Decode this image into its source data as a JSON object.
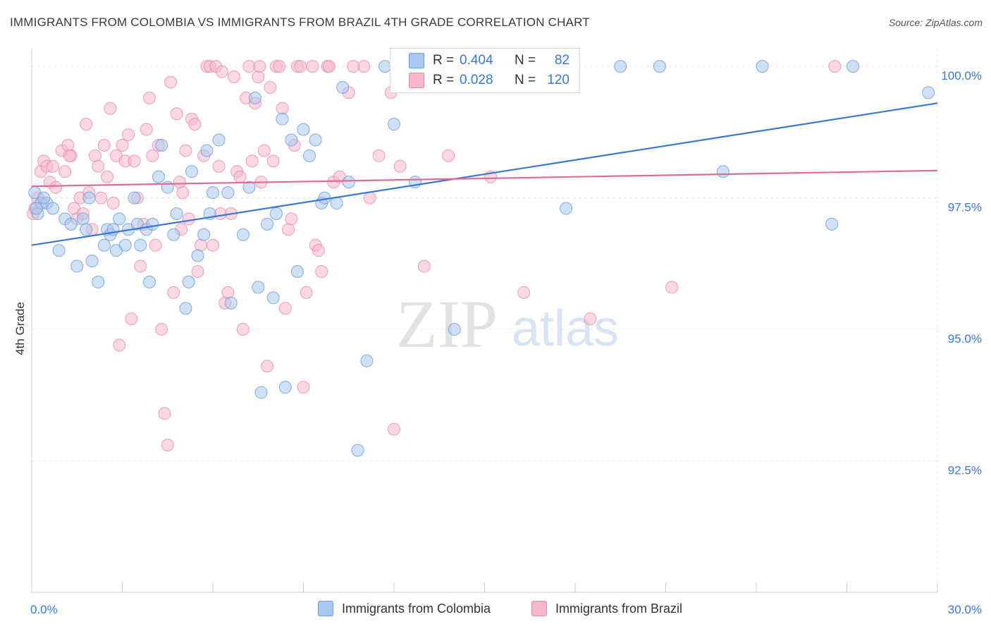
{
  "title": "IMMIGRANTS FROM COLOMBIA VS IMMIGRANTS FROM BRAZIL 4TH GRADE CORRELATION CHART",
  "source": "Source: ZipAtlas.com",
  "watermark": {
    "zip": "ZIP",
    "atlas": "atlas"
  },
  "legend": {
    "colombia": {
      "r_label": "R =",
      "r_value": "0.404",
      "n_label": "N =",
      "n_value": "82"
    },
    "brazil": {
      "r_label": "R =",
      "r_value": "0.028",
      "n_label": "N =",
      "n_value": "120"
    }
  },
  "colors": {
    "colombia_fill": "#a9c8ef",
    "colombia_stroke": "#6f9fd8",
    "colombia_line": "#3a78d4",
    "brazil_fill": "#f5b8cb",
    "brazil_stroke": "#e98aa8",
    "brazil_line": "#e06b95",
    "value_text": "#3a78d4",
    "tick_text": "#3a78d4",
    "grid": "#e4e4e4"
  },
  "chart_data": {
    "type": "scatter",
    "title": "IMMIGRANTS FROM COLOMBIA VS IMMIGRANTS FROM BRAZIL 4TH GRADE CORRELATION CHART",
    "xlabel": "",
    "ylabel": "4th Grade",
    "xlim": [
      0,
      30
    ],
    "ylim": [
      90.0,
      100.35
    ],
    "x_tick_labels": [
      "0.0%",
      "30.0%"
    ],
    "y_ticks": [
      92.5,
      95.0,
      97.5,
      100.0
    ],
    "y_tick_labels": [
      "92.5%",
      "95.0%",
      "97.5%",
      "100.0%"
    ],
    "grid": true,
    "legend_position": "bottom",
    "series": [
      {
        "name": "Immigrants from Colombia",
        "trend": {
          "x": [
            0,
            30
          ],
          "y": [
            96.6,
            99.3
          ]
        },
        "points": [
          [
            0.1,
            97.6
          ],
          [
            0.2,
            97.2
          ],
          [
            0.3,
            97.4
          ],
          [
            0.5,
            97.4
          ],
          [
            0.7,
            97.3
          ],
          [
            0.9,
            96.5
          ],
          [
            1.1,
            97.1
          ],
          [
            1.3,
            97.0
          ],
          [
            1.5,
            96.2
          ],
          [
            1.7,
            97.1
          ],
          [
            1.8,
            96.9
          ],
          [
            1.9,
            97.5
          ],
          [
            2.0,
            96.3
          ],
          [
            2.2,
            95.9
          ],
          [
            2.4,
            96.6
          ],
          [
            2.5,
            96.9
          ],
          [
            2.6,
            96.8
          ],
          [
            2.8,
            96.5
          ],
          [
            2.9,
            97.1
          ],
          [
            3.1,
            96.6
          ],
          [
            3.2,
            96.9
          ],
          [
            3.4,
            97.5
          ],
          [
            3.5,
            97.0
          ],
          [
            3.8,
            96.9
          ],
          [
            3.9,
            95.9
          ],
          [
            4.0,
            97.0
          ],
          [
            4.2,
            97.9
          ],
          [
            4.3,
            98.5
          ],
          [
            4.5,
            97.7
          ],
          [
            4.7,
            96.8
          ],
          [
            4.8,
            97.2
          ],
          [
            5.1,
            95.4
          ],
          [
            5.2,
            95.9
          ],
          [
            5.3,
            98.0
          ],
          [
            5.5,
            96.4
          ],
          [
            5.7,
            96.8
          ],
          [
            5.8,
            98.4
          ],
          [
            5.9,
            97.2
          ],
          [
            6.0,
            97.6
          ],
          [
            6.2,
            98.6
          ],
          [
            6.5,
            97.6
          ],
          [
            6.6,
            95.5
          ],
          [
            7.0,
            96.8
          ],
          [
            7.2,
            97.7
          ],
          [
            7.4,
            99.4
          ],
          [
            7.5,
            95.8
          ],
          [
            7.6,
            93.8
          ],
          [
            7.8,
            97.0
          ],
          [
            8.0,
            95.6
          ],
          [
            8.1,
            97.2
          ],
          [
            8.3,
            99.0
          ],
          [
            8.4,
            93.9
          ],
          [
            8.6,
            98.6
          ],
          [
            8.8,
            96.1
          ],
          [
            9.0,
            98.8
          ],
          [
            9.2,
            98.3
          ],
          [
            9.4,
            98.6
          ],
          [
            9.6,
            97.4
          ],
          [
            9.7,
            97.5
          ],
          [
            10.1,
            97.4
          ],
          [
            10.3,
            99.6
          ],
          [
            10.5,
            97.8
          ],
          [
            10.8,
            92.7
          ],
          [
            11.1,
            94.4
          ],
          [
            11.7,
            100.0
          ],
          [
            12.0,
            98.9
          ],
          [
            12.7,
            97.8
          ],
          [
            13.5,
            100.0
          ],
          [
            14.0,
            95.0
          ],
          [
            15.1,
            100.0
          ],
          [
            17.7,
            97.3
          ],
          [
            19.5,
            100.0
          ],
          [
            20.8,
            100.0
          ],
          [
            22.9,
            98.0
          ],
          [
            24.2,
            100.0
          ],
          [
            26.5,
            97.0
          ],
          [
            27.2,
            100.0
          ],
          [
            29.7,
            99.5
          ],
          [
            0.15,
            97.3
          ],
          [
            0.4,
            97.5
          ],
          [
            2.7,
            96.9
          ],
          [
            3.6,
            96.6
          ]
        ]
      },
      {
        "name": "Immigrants from Brazil",
        "trend": {
          "x": [
            0,
            30
          ],
          "y": [
            97.72,
            98.02
          ]
        },
        "points": [
          [
            0.1,
            97.3
          ],
          [
            0.2,
            97.5
          ],
          [
            0.3,
            98.0
          ],
          [
            0.4,
            98.2
          ],
          [
            0.5,
            98.1
          ],
          [
            0.6,
            97.8
          ],
          [
            0.7,
            98.1
          ],
          [
            0.8,
            97.7
          ],
          [
            1.0,
            98.4
          ],
          [
            1.1,
            98.0
          ],
          [
            1.2,
            98.5
          ],
          [
            1.3,
            98.3
          ],
          [
            1.4,
            97.3
          ],
          [
            1.5,
            97.1
          ],
          [
            1.6,
            97.5
          ],
          [
            1.7,
            97.2
          ],
          [
            1.8,
            98.9
          ],
          [
            1.9,
            97.6
          ],
          [
            2.0,
            96.9
          ],
          [
            2.1,
            98.3
          ],
          [
            2.2,
            98.1
          ],
          [
            2.4,
            98.5
          ],
          [
            2.5,
            97.9
          ],
          [
            2.6,
            99.2
          ],
          [
            2.7,
            97.4
          ],
          [
            2.8,
            98.3
          ],
          [
            2.9,
            94.7
          ],
          [
            3.0,
            98.5
          ],
          [
            3.1,
            98.2
          ],
          [
            3.2,
            98.7
          ],
          [
            3.3,
            95.2
          ],
          [
            3.4,
            98.2
          ],
          [
            3.5,
            97.5
          ],
          [
            3.6,
            96.2
          ],
          [
            3.7,
            97.0
          ],
          [
            3.8,
            98.8
          ],
          [
            3.9,
            99.4
          ],
          [
            4.0,
            98.3
          ],
          [
            4.1,
            96.6
          ],
          [
            4.2,
            98.5
          ],
          [
            4.3,
            95.0
          ],
          [
            4.4,
            93.4
          ],
          [
            4.5,
            92.8
          ],
          [
            4.6,
            99.7
          ],
          [
            4.7,
            95.7
          ],
          [
            4.8,
            99.1
          ],
          [
            4.9,
            97.8
          ],
          [
            5.0,
            97.6
          ],
          [
            5.1,
            98.4
          ],
          [
            5.2,
            97.1
          ],
          [
            5.3,
            99.0
          ],
          [
            5.4,
            98.9
          ],
          [
            5.5,
            96.1
          ],
          [
            5.6,
            96.6
          ],
          [
            5.7,
            98.3
          ],
          [
            5.8,
            100.0
          ],
          [
            5.9,
            100.0
          ],
          [
            6.0,
            96.6
          ],
          [
            6.1,
            100.0
          ],
          [
            6.2,
            98.1
          ],
          [
            6.3,
            99.9
          ],
          [
            6.4,
            95.5
          ],
          [
            6.5,
            95.7
          ],
          [
            6.6,
            97.2
          ],
          [
            6.7,
            99.8
          ],
          [
            6.8,
            98.0
          ],
          [
            6.9,
            97.9
          ],
          [
            7.0,
            95.0
          ],
          [
            7.1,
            99.4
          ],
          [
            7.2,
            100.0
          ],
          [
            7.3,
            98.2
          ],
          [
            7.4,
            99.3
          ],
          [
            7.5,
            99.8
          ],
          [
            7.6,
            97.8
          ],
          [
            7.7,
            98.4
          ],
          [
            7.8,
            94.3
          ],
          [
            7.9,
            99.6
          ],
          [
            8.0,
            98.2
          ],
          [
            8.1,
            100.0
          ],
          [
            8.2,
            100.0
          ],
          [
            8.3,
            99.2
          ],
          [
            8.4,
            95.4
          ],
          [
            8.5,
            96.9
          ],
          [
            8.6,
            97.1
          ],
          [
            8.7,
            98.5
          ],
          [
            8.8,
            100.0
          ],
          [
            8.9,
            100.0
          ],
          [
            9.0,
            93.9
          ],
          [
            9.1,
            95.7
          ],
          [
            9.3,
            100.0
          ],
          [
            9.4,
            96.6
          ],
          [
            9.5,
            96.5
          ],
          [
            9.6,
            96.1
          ],
          [
            9.8,
            100.0
          ],
          [
            10.0,
            97.8
          ],
          [
            10.2,
            97.9
          ],
          [
            10.5,
            99.5
          ],
          [
            11.0,
            100.0
          ],
          [
            11.2,
            97.5
          ],
          [
            11.5,
            98.3
          ],
          [
            12.0,
            93.1
          ],
          [
            12.2,
            98.1
          ],
          [
            13.0,
            96.2
          ],
          [
            13.8,
            98.3
          ],
          [
            14.3,
            100.0
          ],
          [
            15.2,
            97.9
          ],
          [
            16.3,
            95.7
          ],
          [
            18.5,
            95.2
          ],
          [
            21.2,
            95.8
          ],
          [
            26.6,
            100.0
          ],
          [
            0.05,
            97.2
          ],
          [
            0.35,
            97.4
          ],
          [
            2.3,
            97.5
          ],
          [
            4.95,
            96.9
          ],
          [
            6.25,
            97.2
          ],
          [
            7.55,
            100.0
          ],
          [
            9.85,
            100.0
          ],
          [
            10.65,
            100.0
          ],
          [
            11.9,
            99.5
          ],
          [
            1.25,
            98.3
          ]
        ]
      }
    ]
  }
}
